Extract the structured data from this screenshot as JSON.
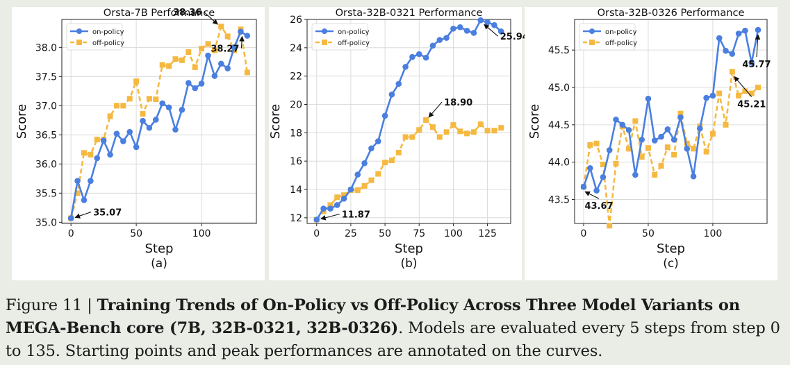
{
  "chart_data": [
    {
      "type": "line",
      "title": "Orsta-7B Performance",
      "xlabel": "Step",
      "ylabel": "Score",
      "sublabel": "(a)",
      "xlim": [
        -7,
        142
      ],
      "ylim": [
        34.98,
        38.48
      ],
      "xticks": [
        0,
        50,
        100
      ],
      "yticks": [
        35.0,
        35.5,
        36.0,
        36.5,
        37.0,
        37.5,
        38.0
      ],
      "ytick_format": 1,
      "x": [
        0,
        5,
        10,
        15,
        20,
        25,
        30,
        35,
        40,
        45,
        50,
        55,
        60,
        65,
        70,
        75,
        80,
        85,
        90,
        95,
        100,
        105,
        110,
        115,
        120,
        125,
        130,
        135
      ],
      "series": [
        {
          "name": "on-policy",
          "color": "#4a7fe0",
          "values": [
            35.07,
            35.71,
            35.38,
            35.71,
            36.1,
            36.4,
            36.16,
            36.52,
            36.39,
            36.55,
            36.29,
            36.74,
            36.62,
            36.76,
            37.04,
            36.97,
            36.59,
            36.93,
            37.39,
            37.3,
            37.38,
            37.86,
            37.51,
            37.72,
            37.64,
            38.0,
            38.27,
            38.2
          ]
        },
        {
          "name": "off-policy",
          "color": "#f5b942",
          "values": [
            35.07,
            35.5,
            36.19,
            36.16,
            36.42,
            36.42,
            36.82,
            37.0,
            37.0,
            37.12,
            37.42,
            36.86,
            37.12,
            37.11,
            37.7,
            37.68,
            37.8,
            37.78,
            37.92,
            37.66,
            37.98,
            38.06,
            37.95,
            38.36,
            38.19,
            37.95,
            38.31,
            37.57
          ]
        }
      ],
      "legend": "top-left",
      "annotations": [
        {
          "text": "35.07",
          "x": 0,
          "y": 35.07
        },
        {
          "text": "38.36",
          "x": 115,
          "y": 38.36
        },
        {
          "text": "38.27",
          "x": 130,
          "y": 38.27
        }
      ]
    },
    {
      "type": "line",
      "title": "Orsta-32B-0321 Performance",
      "xlabel": "Step",
      "ylabel": "Score",
      "sublabel": "(b)",
      "xlim": [
        -7,
        142
      ],
      "ylim": [
        11.6,
        26.0
      ],
      "xticks": [
        0,
        25,
        50,
        75,
        100,
        125
      ],
      "yticks": [
        12,
        14,
        16,
        18,
        20,
        22,
        24,
        26
      ],
      "ytick_format": 0,
      "x": [
        0,
        5,
        10,
        15,
        20,
        25,
        30,
        35,
        40,
        45,
        50,
        55,
        60,
        65,
        70,
        75,
        80,
        85,
        90,
        95,
        100,
        105,
        110,
        115,
        120,
        125,
        130,
        135
      ],
      "series": [
        {
          "name": "on-policy",
          "color": "#4a7fe0",
          "values": [
            11.87,
            12.65,
            12.65,
            12.9,
            13.35,
            14.0,
            15.05,
            15.85,
            16.9,
            17.4,
            19.2,
            20.7,
            21.45,
            22.65,
            23.35,
            23.55,
            23.3,
            24.15,
            24.55,
            24.7,
            25.35,
            25.45,
            25.2,
            25.05,
            25.94,
            25.8,
            25.6,
            25.15
          ]
        },
        {
          "name": "off-policy",
          "color": "#f5b942",
          "values": [
            11.87,
            12.45,
            12.9,
            13.45,
            13.6,
            13.95,
            13.95,
            14.25,
            14.65,
            15.1,
            15.9,
            16.05,
            16.6,
            17.7,
            17.7,
            18.2,
            18.9,
            18.4,
            17.7,
            18.05,
            18.55,
            18.1,
            17.95,
            18.05,
            18.6,
            18.15,
            18.15,
            18.35
          ]
        }
      ],
      "legend": "top-left",
      "annotations": [
        {
          "text": "11.87",
          "x": 0,
          "y": 11.87
        },
        {
          "text": "18.90",
          "x": 80,
          "y": 18.9
        },
        {
          "text": "25.94",
          "x": 120,
          "y": 25.94
        }
      ]
    },
    {
      "type": "line",
      "title": "Orsta-32B-0326 Performance",
      "xlabel": "Step",
      "ylabel": "Score",
      "sublabel": "(c)",
      "xlim": [
        -7,
        142
      ],
      "ylim": [
        43.18,
        45.91
      ],
      "xticks": [
        0,
        50,
        100
      ],
      "yticks": [
        43.5,
        44.0,
        44.5,
        45.0,
        45.5
      ],
      "ytick_format": 1,
      "x": [
        0,
        5,
        10,
        15,
        20,
        25,
        30,
        35,
        40,
        45,
        50,
        55,
        60,
        65,
        70,
        75,
        80,
        85,
        90,
        95,
        100,
        105,
        110,
        115,
        120,
        125,
        130,
        135
      ],
      "series": [
        {
          "name": "on-policy",
          "color": "#4a7fe0",
          "values": [
            43.67,
            43.92,
            43.62,
            43.8,
            44.16,
            44.57,
            44.5,
            44.43,
            43.83,
            44.3,
            44.85,
            44.29,
            44.34,
            44.44,
            44.3,
            44.6,
            44.18,
            43.81,
            44.45,
            44.86,
            44.89,
            45.66,
            45.49,
            45.45,
            45.72,
            45.76,
            45.33,
            45.77
          ]
        },
        {
          "name": "off-policy",
          "color": "#f5b942",
          "values": [
            43.67,
            44.23,
            44.25,
            43.97,
            43.15,
            43.98,
            44.48,
            44.18,
            44.55,
            44.07,
            44.19,
            43.83,
            43.95,
            44.2,
            44.1,
            44.65,
            44.25,
            44.18,
            44.48,
            44.14,
            44.38,
            44.92,
            44.5,
            45.21,
            44.89,
            44.95,
            44.92,
            45.0
          ]
        }
      ],
      "legend": "top-left",
      "annotations": [
        {
          "text": "43.67",
          "x": 0,
          "y": 43.67
        },
        {
          "text": "45.21",
          "x": 115,
          "y": 45.21
        },
        {
          "text": "45.77",
          "x": 135,
          "y": 45.77
        }
      ]
    }
  ],
  "caption": {
    "label": "Figure 11 | ",
    "bold": "Training Trends of On-Policy vs Off-Policy Across Three Model Variants on MEGA-Bench core (7B, 32B-0321, 32B-0326)",
    "rest": ". Models are evaluated every 5 steps from step 0 to 135. Starting points and peak performances are annotated on the curves."
  }
}
